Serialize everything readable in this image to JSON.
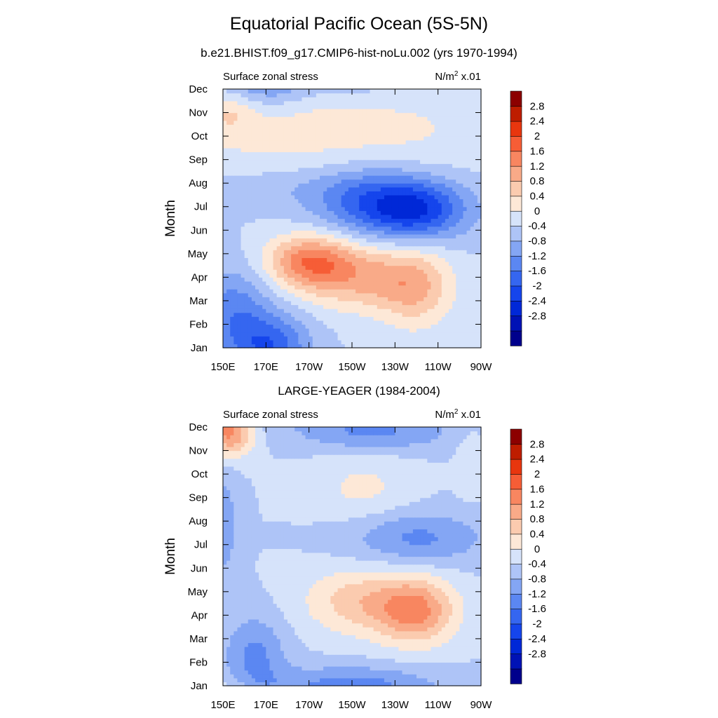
{
  "title": "Equatorial Pacific Ocean (5S-5N)",
  "subtitle": "b.e21.BHIST.f09_g17.CMIP6-hist-noLu.002 (yrs 1970-1994)",
  "chart_data": [
    {
      "type": "heatmap",
      "title": "",
      "left_label": "Surface zonal stress",
      "units_label": "N/m",
      "units_sup": "2",
      "units_scale": "x.01",
      "ylabel": "Month",
      "xlabel": "",
      "x_ticks": [
        "150E",
        "170E",
        "170W",
        "150W",
        "130W",
        "110W",
        "90W"
      ],
      "y_ticks": [
        "Jan",
        "Feb",
        "Mar",
        "Apr",
        "May",
        "Jun",
        "Jul",
        "Aug",
        "Sep",
        "Oct",
        "Nov",
        "Dec"
      ],
      "colorbar_labels": [
        "2.8",
        "2.4",
        "2",
        "1.6",
        "1.2",
        "0.8",
        "0.4",
        "0",
        "-0.4",
        "-0.8",
        "-1.2",
        "-1.6",
        "-2",
        "-2.4",
        "-2.8"
      ],
      "contour_levels": [
        -2.8,
        -2.4,
        -2,
        -1.6,
        -1.2,
        -0.8,
        -0.4,
        0,
        0.4,
        0.8,
        1.2,
        1.6,
        2,
        2.4,
        2.8
      ],
      "features": [
        {
          "type": "core",
          "lon": 172,
          "month": 1,
          "value": -1.5,
          "sx": 13,
          "sy": 1.0
        },
        {
          "type": "core",
          "lon": 155,
          "month": 2.6,
          "value": -1.0,
          "sx": 12,
          "sy": 1.3
        },
        {
          "type": "core",
          "lon": 190,
          "month": 4.7,
          "value": 1.7,
          "sx": 14,
          "sy": 0.8
        },
        {
          "type": "core",
          "lon": 215,
          "month": 4.0,
          "value": 1.2,
          "sx": 20,
          "sy": 1.0
        },
        {
          "type": "core",
          "lon": 240,
          "month": 3.5,
          "value": 1.0,
          "sx": 12,
          "sy": 1.2
        },
        {
          "type": "core",
          "lon": 240,
          "month": 6.9,
          "value": -1.9,
          "sx": 17,
          "sy": 0.9
        },
        {
          "type": "core",
          "lon": 215,
          "month": 7.3,
          "value": -1.1,
          "sx": 18,
          "sy": 1.0
        },
        {
          "type": "core",
          "lon": 175,
          "month": 7.8,
          "value": -0.3,
          "sx": 25,
          "sy": 0.6
        },
        {
          "type": "core",
          "lon": 195,
          "month": 10.3,
          "value": 0.6,
          "sx": 60,
          "sy": 1.3
        },
        {
          "type": "core",
          "lon": 153,
          "month": 11.0,
          "value": 0.5,
          "sx": 8,
          "sy": 0.6
        },
        {
          "type": "core",
          "lon": 210,
          "month": 12.0,
          "value": -0.3,
          "sx": 15,
          "sy": 0.5
        }
      ]
    },
    {
      "type": "heatmap",
      "title": "LARGE-YEAGER (1984-2004)",
      "left_label": "Surface zonal stress",
      "units_label": "N/m",
      "units_sup": "2",
      "units_scale": "x.01",
      "ylabel": "Month",
      "xlabel": "",
      "x_ticks": [
        "150E",
        "170E",
        "170W",
        "150W",
        "130W",
        "110W",
        "90W"
      ],
      "y_ticks": [
        "Jan",
        "Feb",
        "Mar",
        "Apr",
        "May",
        "Jun",
        "Jul",
        "Aug",
        "Sep",
        "Oct",
        "Nov",
        "Dec"
      ],
      "colorbar_labels": [
        "2.8",
        "2.4",
        "2",
        "1.6",
        "1.2",
        "0.8",
        "0.4",
        "0",
        "-0.4",
        "-0.8",
        "-1.2",
        "-1.6",
        "-2",
        "-2.4",
        "-2.8"
      ],
      "contour_levels": [
        -2.8,
        -2.4,
        -2,
        -1.6,
        -1.2,
        -0.8,
        -0.4,
        0,
        0.4,
        0.8,
        1.2,
        1.6,
        2,
        2.4,
        2.8
      ],
      "features": [
        {
          "type": "core",
          "lon": 153,
          "month": 11.8,
          "value": 1.8,
          "sx": 8,
          "sy": 0.7
        },
        {
          "type": "core",
          "lon": 240,
          "month": 4.2,
          "value": 1.6,
          "sx": 13,
          "sy": 1.0
        },
        {
          "type": "core",
          "lon": 213,
          "month": 4.6,
          "value": 1.0,
          "sx": 18,
          "sy": 1.0
        },
        {
          "type": "core",
          "lon": 215,
          "month": 9.4,
          "value": 0.5,
          "sx": 16,
          "sy": 1.0
        },
        {
          "type": "core",
          "lon": 165,
          "month": 2.3,
          "value": -0.9,
          "sx": 10,
          "sy": 1.2
        },
        {
          "type": "core",
          "lon": 150,
          "month": 7.8,
          "value": -0.7,
          "sx": 5,
          "sy": 1.6
        },
        {
          "type": "core",
          "lon": 210,
          "month": 1.0,
          "value": -1.0,
          "sx": 28,
          "sy": 0.6
        },
        {
          "type": "core",
          "lon": 240,
          "month": 7.3,
          "value": -0.9,
          "sx": 22,
          "sy": 0.8
        },
        {
          "type": "core",
          "lon": 220,
          "month": 11.7,
          "value": -0.8,
          "sx": 25,
          "sy": 0.5
        },
        {
          "type": "core",
          "lon": 265,
          "month": 10.5,
          "value": 0.4,
          "sx": 4,
          "sy": 1.0
        }
      ]
    }
  ],
  "colors": {
    "levels": [
      "#00008c",
      "#0012b5",
      "#0028d7",
      "#1545ec",
      "#3566f0",
      "#5b87f2",
      "#84a6f4",
      "#aec4f7",
      "#d6e3fa",
      "#fde8d7",
      "#fbcbaf",
      "#f9aa88",
      "#f88660",
      "#f65d36",
      "#e8360e",
      "#be1d00",
      "#8c0000"
    ]
  }
}
